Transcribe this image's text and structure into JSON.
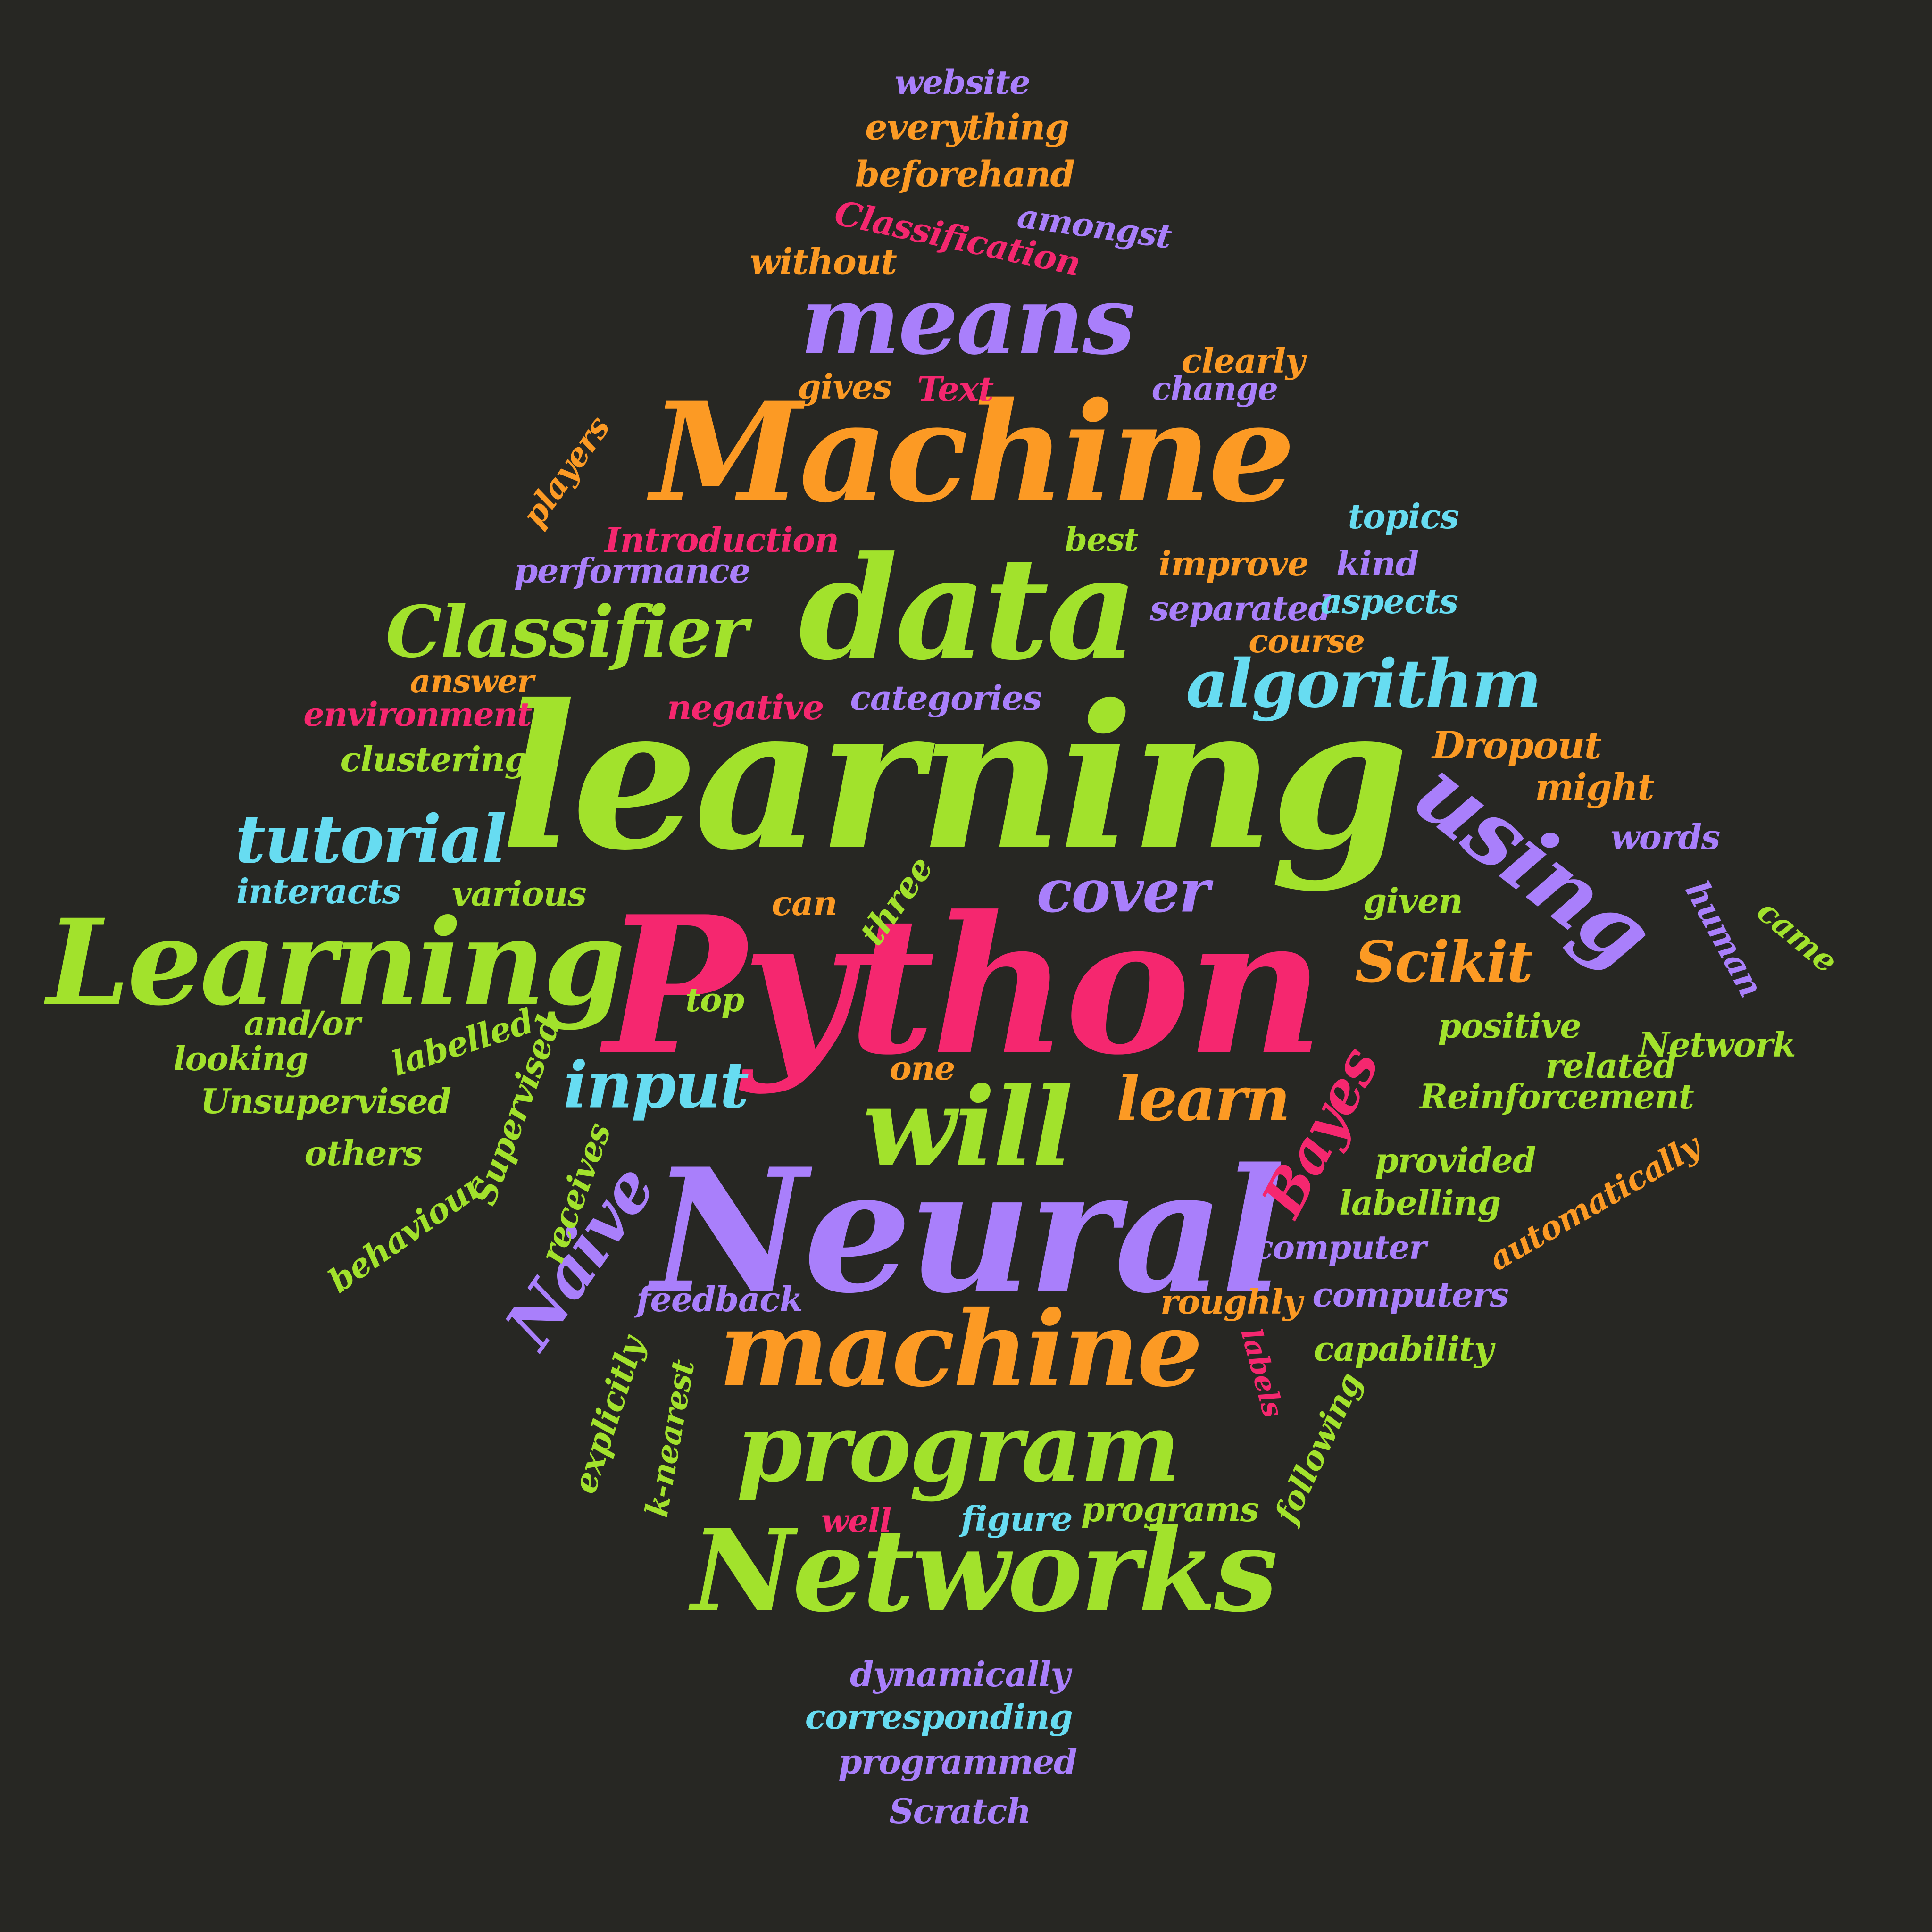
{
  "colors": {
    "background": "#272723",
    "green": "#a2e22c",
    "orange": "#fc9a24",
    "pink": "#f5276f",
    "purple": "#a97ffb",
    "cyan": "#67dcf1"
  },
  "words": [
    {
      "text": "Python",
      "color": "pink"
    },
    {
      "text": "learning",
      "color": "green"
    },
    {
      "text": "Neural",
      "color": "purple"
    },
    {
      "text": "Machine",
      "color": "orange"
    },
    {
      "text": "data",
      "color": "green"
    },
    {
      "text": "Networks",
      "color": "green"
    },
    {
      "text": "Learning",
      "color": "green"
    },
    {
      "text": "machine",
      "color": "orange"
    },
    {
      "text": "program",
      "color": "green"
    },
    {
      "text": "means",
      "color": "purple"
    },
    {
      "text": "using",
      "color": "purple"
    },
    {
      "text": "will",
      "color": "green"
    },
    {
      "text": "Classifier",
      "color": "green"
    },
    {
      "text": "algorithm",
      "color": "cyan"
    },
    {
      "text": "tutorial",
      "color": "cyan"
    },
    {
      "text": "Naive",
      "color": "purple"
    },
    {
      "text": "Bayes",
      "color": "pink"
    },
    {
      "text": "input",
      "color": "cyan"
    },
    {
      "text": "cover",
      "color": "purple"
    },
    {
      "text": "learn",
      "color": "orange"
    },
    {
      "text": "Scikit",
      "color": "orange"
    },
    {
      "text": "website",
      "color": "purple"
    },
    {
      "text": "everything",
      "color": "orange"
    },
    {
      "text": "beforehand",
      "color": "orange"
    },
    {
      "text": "amongst",
      "color": "purple"
    },
    {
      "text": "Classification",
      "color": "pink"
    },
    {
      "text": "without",
      "color": "orange"
    },
    {
      "text": "clearly",
      "color": "orange"
    },
    {
      "text": "gives",
      "color": "orange"
    },
    {
      "text": "Text",
      "color": "pink"
    },
    {
      "text": "change",
      "color": "purple"
    },
    {
      "text": "players",
      "color": "orange"
    },
    {
      "text": "topics",
      "color": "cyan"
    },
    {
      "text": "Introduction",
      "color": "pink"
    },
    {
      "text": "best",
      "color": "green"
    },
    {
      "text": "performance",
      "color": "purple"
    },
    {
      "text": "improve",
      "color": "orange"
    },
    {
      "text": "kind",
      "color": "purple"
    },
    {
      "text": "separated",
      "color": "purple"
    },
    {
      "text": "aspects",
      "color": "cyan"
    },
    {
      "text": "course",
      "color": "orange"
    },
    {
      "text": "answer",
      "color": "orange"
    },
    {
      "text": "environment",
      "color": "pink"
    },
    {
      "text": "negative",
      "color": "pink"
    },
    {
      "text": "categories",
      "color": "purple"
    },
    {
      "text": "clustering",
      "color": "green"
    },
    {
      "text": "Dropout",
      "color": "orange"
    },
    {
      "text": "might",
      "color": "orange"
    },
    {
      "text": "words",
      "color": "purple"
    },
    {
      "text": "interacts",
      "color": "cyan"
    },
    {
      "text": "various",
      "color": "green"
    },
    {
      "text": "can",
      "color": "orange"
    },
    {
      "text": "three",
      "color": "green"
    },
    {
      "text": "given",
      "color": "green"
    },
    {
      "text": "human",
      "color": "purple"
    },
    {
      "text": "came",
      "color": "green"
    },
    {
      "text": "top",
      "color": "green"
    },
    {
      "text": "and/or",
      "color": "green"
    },
    {
      "text": "labelled",
      "color": "green"
    },
    {
      "text": "looking",
      "color": "green"
    },
    {
      "text": "Supervised",
      "color": "green"
    },
    {
      "text": "positive",
      "color": "green"
    },
    {
      "text": "Network",
      "color": "green"
    },
    {
      "text": "related",
      "color": "green"
    },
    {
      "text": "one",
      "color": "orange"
    },
    {
      "text": "Unsupervised",
      "color": "green"
    },
    {
      "text": "Reinforcement",
      "color": "green"
    },
    {
      "text": "others",
      "color": "green"
    },
    {
      "text": "receives",
      "color": "green"
    },
    {
      "text": "behaviour",
      "color": "green"
    },
    {
      "text": "provided",
      "color": "green"
    },
    {
      "text": "automatically",
      "color": "orange"
    },
    {
      "text": "labelling",
      "color": "green"
    },
    {
      "text": "computer",
      "color": "purple"
    },
    {
      "text": "feedback",
      "color": "purple"
    },
    {
      "text": "roughly",
      "color": "orange"
    },
    {
      "text": "computers",
      "color": "purple"
    },
    {
      "text": "labels",
      "color": "pink"
    },
    {
      "text": "capability",
      "color": "green"
    },
    {
      "text": "explicitly",
      "color": "green"
    },
    {
      "text": "k-nearest",
      "color": "green"
    },
    {
      "text": "following",
      "color": "green"
    },
    {
      "text": "well",
      "color": "pink"
    },
    {
      "text": "figure",
      "color": "cyan"
    },
    {
      "text": "programs",
      "color": "green"
    },
    {
      "text": "dynamically",
      "color": "purple"
    },
    {
      "text": "corresponding",
      "color": "cyan"
    },
    {
      "text": "programmed",
      "color": "purple"
    },
    {
      "text": "Scratch",
      "color": "purple"
    }
  ]
}
